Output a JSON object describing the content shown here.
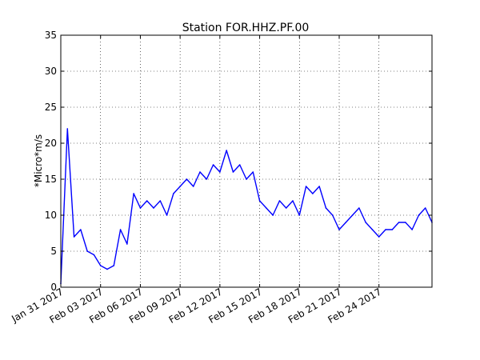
{
  "chart_data": {
    "type": "line",
    "title": "Station FOR.HHZ.PF.00",
    "xlabel": "",
    "ylabel": "*Micro*m/s",
    "xlim": [
      "2017-01-31",
      "2017-02-28"
    ],
    "ylim": [
      0,
      35
    ],
    "x_ticks": [
      "Jan 31 2017",
      "Feb 03 2017",
      "Feb 06 2017",
      "Feb 09 2017",
      "Feb 12 2017",
      "Feb 15 2017",
      "Feb 18 2017",
      "Feb 21 2017",
      "Feb 24 2017"
    ],
    "y_ticks": [
      "0",
      "5",
      "10",
      "15",
      "20",
      "25",
      "30",
      "35"
    ],
    "grid": true,
    "colors": {
      "line": "#0000ff"
    },
    "series": [
      {
        "x": [
          "2017-01-31 00:00",
          "2017-01-31 12:00",
          "2017-02-01 00:00",
          "2017-02-01 12:00",
          "2017-02-02 00:00",
          "2017-02-02 12:00",
          "2017-02-03 00:00",
          "2017-02-03 12:00",
          "2017-02-04 00:00",
          "2017-02-04 12:00",
          "2017-02-05 00:00",
          "2017-02-05 12:00",
          "2017-02-06 00:00",
          "2017-02-06 12:00",
          "2017-02-07 00:00",
          "2017-02-07 12:00",
          "2017-02-08 00:00",
          "2017-02-08 12:00",
          "2017-02-09 00:00",
          "2017-02-09 12:00",
          "2017-02-10 00:00",
          "2017-02-10 12:00",
          "2017-02-11 00:00",
          "2017-02-11 12:00",
          "2017-02-12 00:00",
          "2017-02-12 12:00",
          "2017-02-13 00:00",
          "2017-02-13 12:00",
          "2017-02-14 00:00",
          "2017-02-14 12:00",
          "2017-02-15 00:00",
          "2017-02-15 12:00",
          "2017-02-16 00:00",
          "2017-02-16 12:00",
          "2017-02-17 00:00",
          "2017-02-17 12:00",
          "2017-02-18 00:00",
          "2017-02-18 12:00",
          "2017-02-19 00:00",
          "2017-02-19 12:00",
          "2017-02-20 00:00",
          "2017-02-20 12:00",
          "2017-02-21 00:00",
          "2017-02-21 12:00",
          "2017-02-22 00:00",
          "2017-02-22 12:00",
          "2017-02-23 00:00",
          "2017-02-23 12:00",
          "2017-02-24 00:00",
          "2017-02-24 12:00",
          "2017-02-25 00:00",
          "2017-02-25 12:00",
          "2017-02-26 00:00",
          "2017-02-26 12:00",
          "2017-02-27 00:00",
          "2017-02-27 12:00",
          "2017-02-28 00:00"
        ],
        "values": [
          0.5,
          22,
          7,
          8,
          5,
          4.5,
          3,
          2.5,
          3,
          8,
          6,
          13,
          11,
          12,
          11,
          12,
          10,
          13,
          14,
          15,
          14,
          16,
          15,
          17,
          16,
          19,
          16,
          17,
          15,
          16,
          12,
          11,
          10,
          12,
          11,
          12,
          10,
          14,
          13,
          14,
          11,
          10,
          8,
          9,
          10,
          11,
          9,
          8,
          7,
          8,
          8,
          9,
          9,
          8,
          10,
          11,
          9
        ]
      }
    ]
  }
}
